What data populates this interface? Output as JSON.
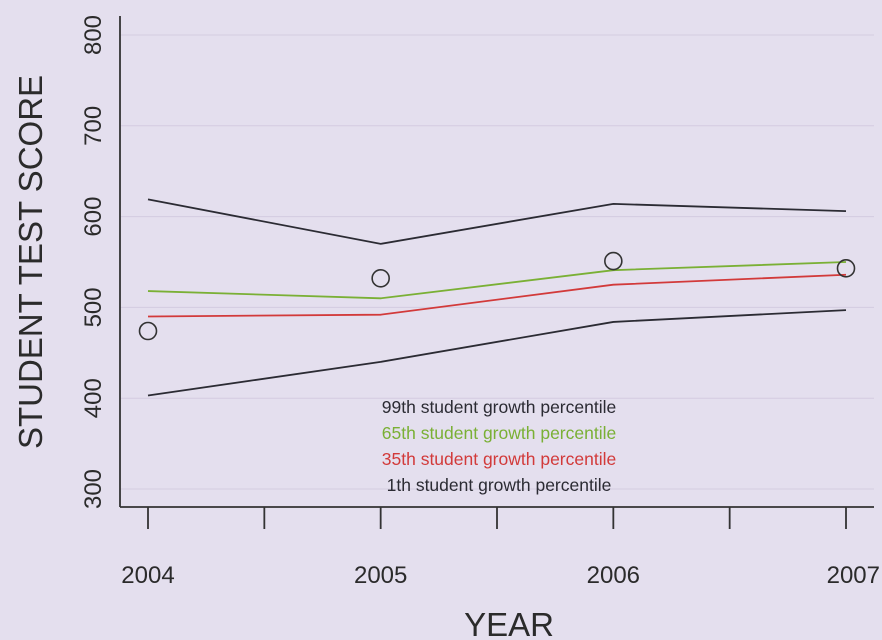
{
  "chart_data": {
    "type": "line",
    "xlabel": "YEAR",
    "ylabel": "STUDENT TEST SCORE",
    "x": [
      2004,
      2005,
      2006,
      2007
    ],
    "ylim": [
      300,
      800
    ],
    "xlim": [
      2004,
      2007
    ],
    "y_ticks": [
      300,
      400,
      500,
      600,
      700,
      800
    ],
    "x_ticks": [
      2004,
      2005,
      2006,
      2007
    ],
    "grid": "horizontal",
    "legend_position": "bottom-center",
    "series": [
      {
        "name": "99th student growth percentile",
        "values": [
          619,
          570,
          614,
          606
        ],
        "color": "#2b2b33"
      },
      {
        "name": "65th student growth percentile",
        "values": [
          518,
          510,
          541,
          550
        ],
        "color": "#7ab035"
      },
      {
        "name": "35th student growth percentile",
        "values": [
          490,
          492,
          525,
          536
        ],
        "color": "#d23a3a"
      },
      {
        "name": "1th student growth percentile",
        "values": [
          403,
          440,
          484,
          497
        ],
        "color": "#2b2b33"
      }
    ],
    "observed_scores": [
      {
        "x": 2004,
        "y": 474
      },
      {
        "x": 2005,
        "y": 532
      },
      {
        "x": 2006,
        "y": 551
      },
      {
        "x": 2007,
        "y": 543
      }
    ]
  }
}
